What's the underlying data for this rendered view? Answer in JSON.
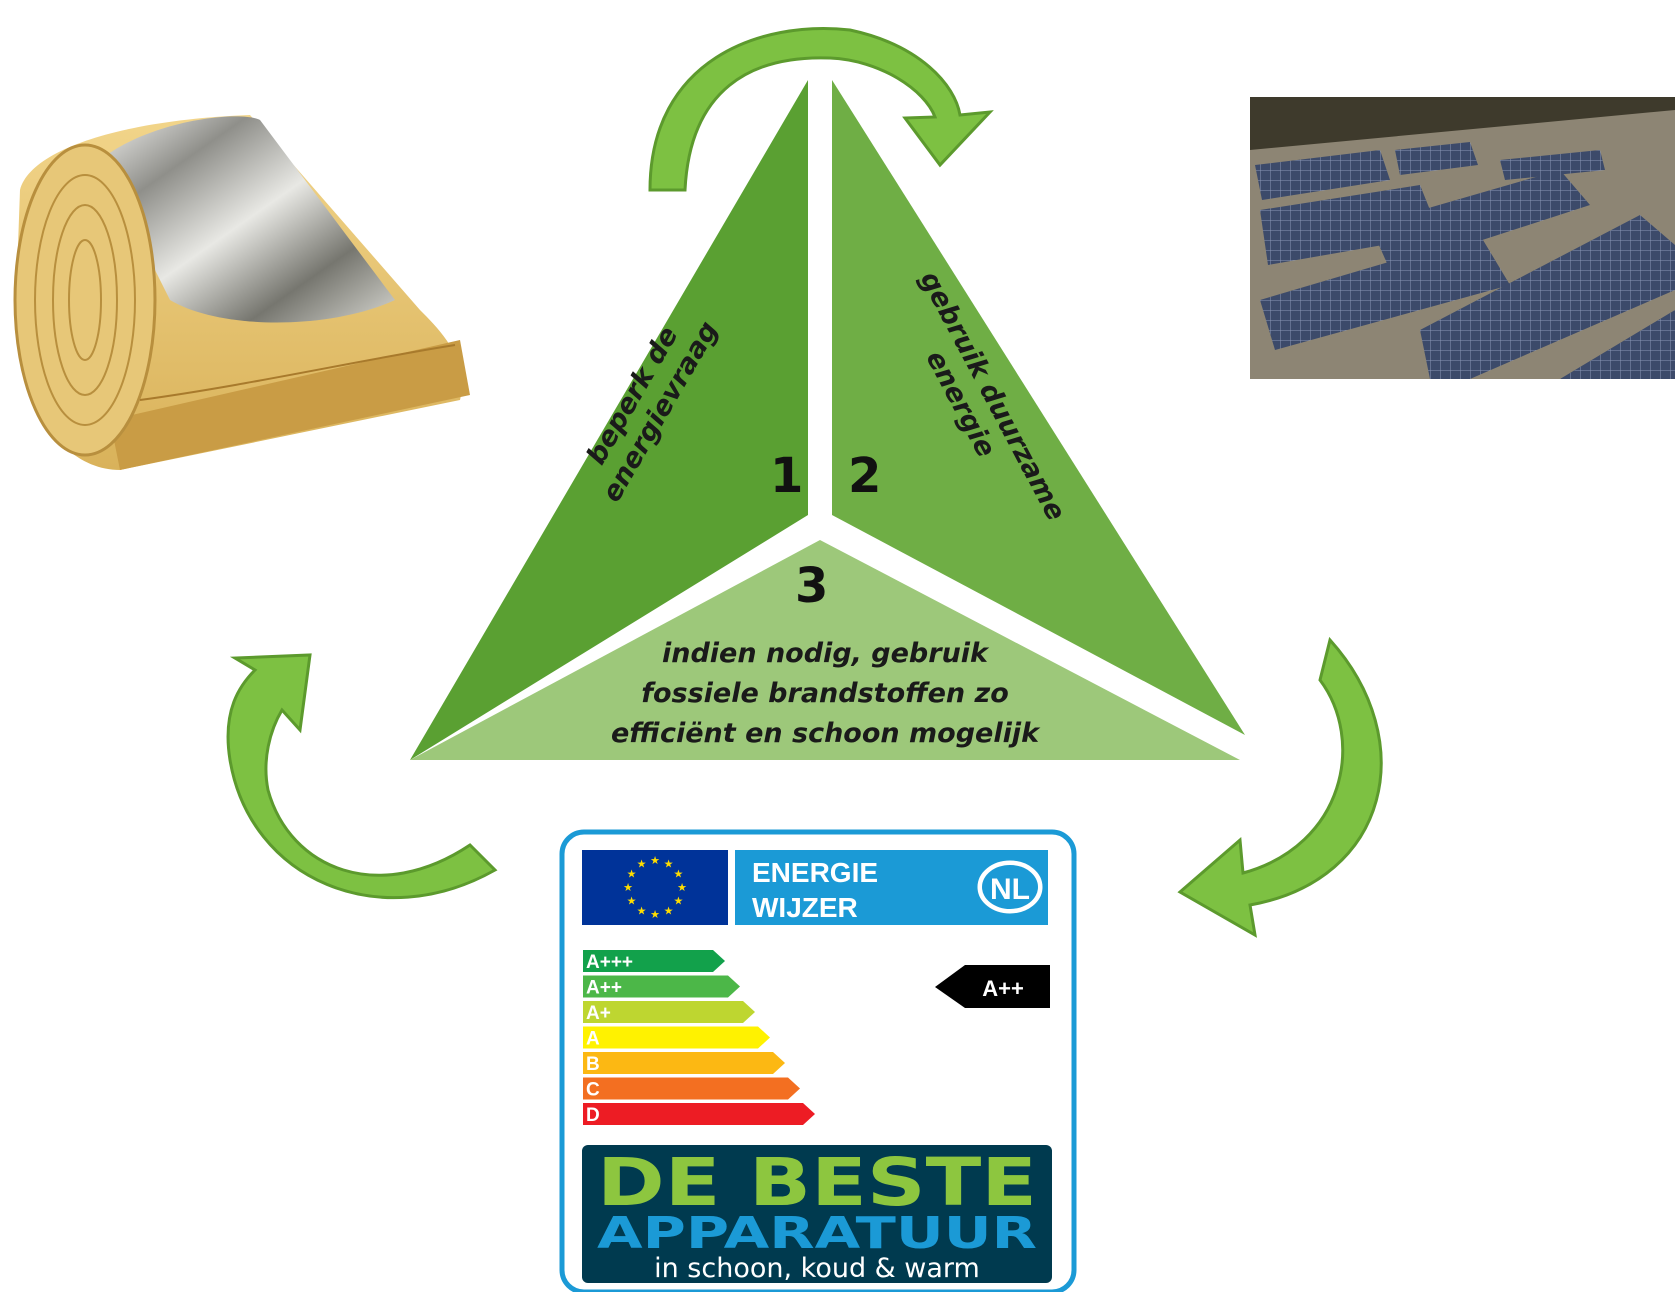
{
  "triangle": {
    "section1": {
      "number": "1",
      "line1": "beperk de",
      "line2": "energievraag"
    },
    "section2": {
      "number": "2",
      "line1": "gebruik duurzame",
      "line2": "energie"
    },
    "section3": {
      "number": "3",
      "line1": "indien nodig, gebruik",
      "line2": "fossiele brandstoffen zo",
      "line3": "efficiënt en schoon mogelijk"
    }
  },
  "label": {
    "title_line1": "ENERGIE",
    "title_line2": "WIJZER",
    "country": "NL",
    "rating": "A++",
    "classes": [
      "A+++",
      "A++",
      "A+",
      "A",
      "B",
      "C",
      "D"
    ],
    "class_colors": [
      "#12a14b",
      "#4cb748",
      "#bed630",
      "#fff200",
      "#fcb813",
      "#f36f21",
      "#ed1c24"
    ],
    "banner_line1": "DE BESTE",
    "banner_line2": "APPARATUUR",
    "banner_line3": "in schoon, koud & warm"
  },
  "images": {
    "insulation": "insulation-roll-image",
    "solar": "solar-panels-photo"
  },
  "colors": {
    "triangle_dark": "#5aa032",
    "triangle_mid": "#6fae45",
    "triangle_light": "#9dc87a",
    "arrow": "#7dc142",
    "label_border": "#1b9ad6",
    "label_blue": "#1b9ad6",
    "eu_flag": "#003399",
    "banner_bg": "#003a4f",
    "banner_green": "#8dc63f",
    "banner_blue": "#1b9ad6"
  }
}
